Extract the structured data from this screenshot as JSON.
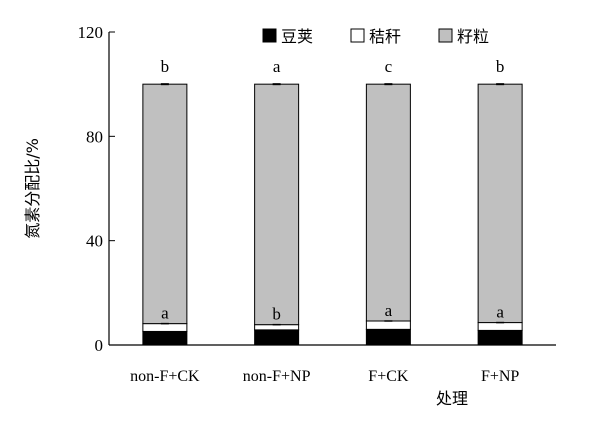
{
  "chart_data": {
    "type": "stacked_bar",
    "categories": [
      "non-F+CK",
      "non-F+NP",
      "F+CK",
      "F+NP"
    ],
    "series": [
      {
        "name": "豆荚",
        "color": "#000000",
        "values": [
          5.2,
          5.8,
          6.0,
          5.6
        ]
      },
      {
        "name": "秸秆",
        "color": "#ffffff",
        "values": [
          3.0,
          2.0,
          3.2,
          3.0
        ]
      },
      {
        "name": "籽粒",
        "color": "#c0c0c0",
        "values": [
          91.8,
          92.2,
          90.8,
          91.4
        ]
      }
    ],
    "top_letters": [
      "b",
      "a",
      "c",
      "b"
    ],
    "mid_letters": [
      "a",
      "b",
      "a",
      "a"
    ],
    "xlabel": "处理",
    "ylabel": "氮素分配比/%",
    "ylim": [
      0,
      120
    ],
    "yticks": [
      0,
      40,
      80,
      120
    ],
    "legend_position": "top-right",
    "grid": false
  }
}
